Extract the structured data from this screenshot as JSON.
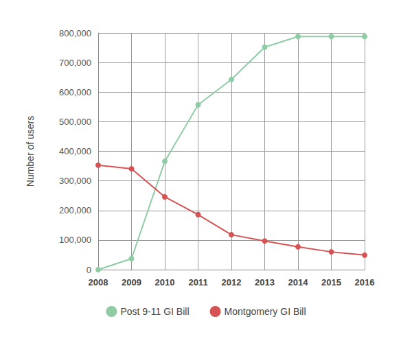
{
  "chart_data": {
    "type": "line",
    "y_label": "Number of users",
    "categories": [
      "2008",
      "2009",
      "2010",
      "2011",
      "2012",
      "2013",
      "2014",
      "2015",
      "2016"
    ],
    "series": [
      {
        "name": "Post 9-11 GI Bill",
        "color": "#8fcca6",
        "values": [
          0,
          37000,
          366000,
          557000,
          643000,
          752000,
          788000,
          788000,
          788000
        ]
      },
      {
        "name": "Montgomery GI Bill",
        "color": "#d65353",
        "values": [
          353000,
          341000,
          246000,
          186000,
          118000,
          97000,
          77000,
          60000,
          49000
        ]
      }
    ],
    "ylim": [
      0,
      800000
    ],
    "yticks": [
      0,
      {
        "value": 100000,
        "label": "100,000"
      },
      {
        "value": 200000,
        "label": "200,000"
      },
      {
        "value": 300000,
        "label": "300,000"
      },
      {
        "value": 400000,
        "label": "400,000"
      },
      {
        "value": 500000,
        "label": "500,000"
      },
      {
        "value": 600000,
        "label": "600,000"
      },
      {
        "value": 700000,
        "label": "700,000"
      },
      {
        "value": 800000,
        "label": "800,000"
      }
    ],
    "grid": true,
    "legend": "bottom",
    "marker": "circle"
  }
}
